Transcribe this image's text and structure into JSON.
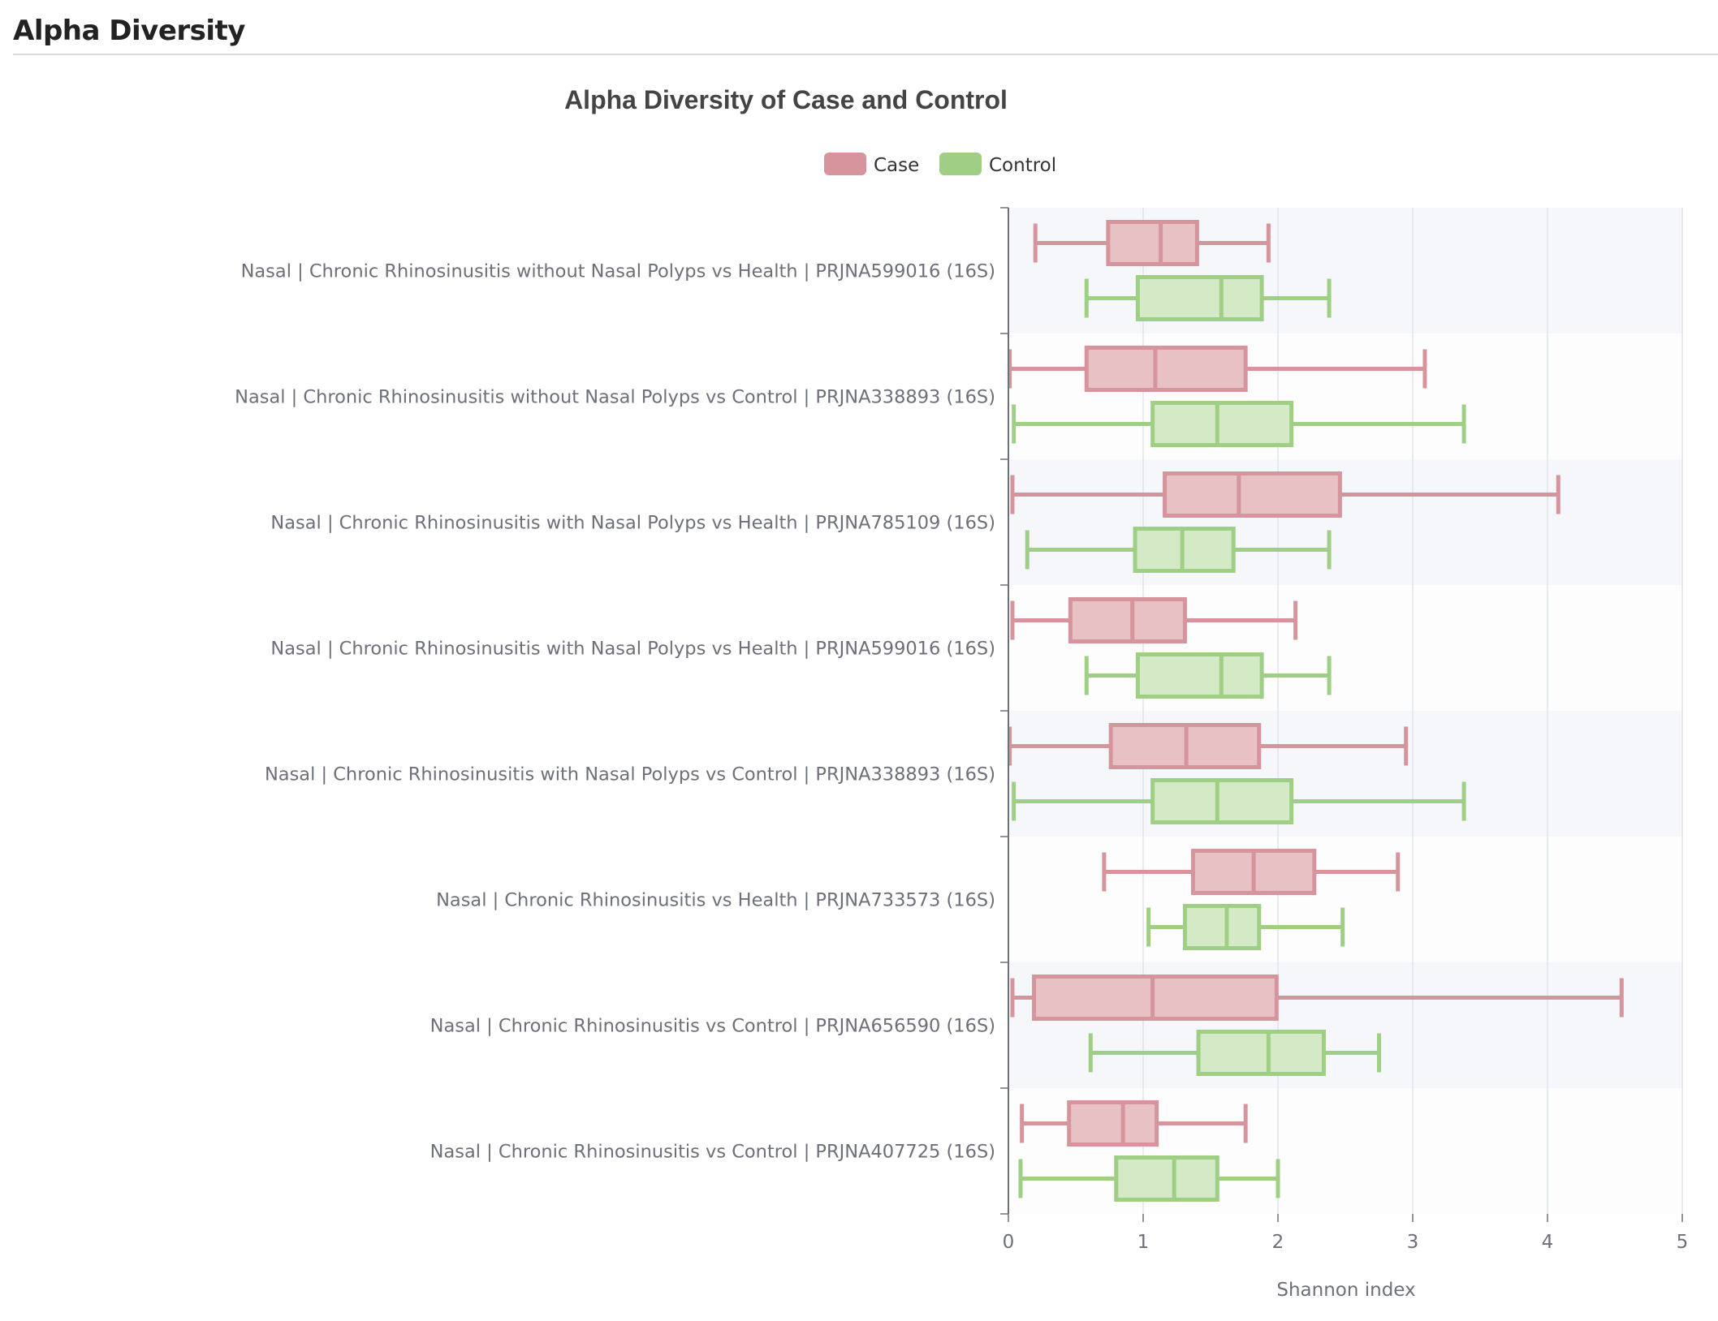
{
  "header": {
    "title": "Alpha Diversity"
  },
  "colors": {
    "case_stroke": "#d6959c",
    "case_fill": "#e8c1c5",
    "control_stroke": "#9fcf84",
    "control_fill": "#d4e9c5",
    "band": "#f6f7fb",
    "grid": "#e0e3ea",
    "axis": "#6e7079"
  },
  "chart_data": {
    "type": "boxplot",
    "title": "Alpha Diversity of Case and Control",
    "xlabel": "Shannon index",
    "ylabel": "",
    "xlim": [
      0,
      5
    ],
    "xticks": [
      "0",
      "1",
      "2",
      "3",
      "4",
      "5"
    ],
    "grid": true,
    "legend_position": "top-center",
    "categories": [
      "Nasal | Chronic Rhinosinusitis without Nasal Polyps vs Health | PRJNA599016 (16S)",
      "Nasal | Chronic Rhinosinusitis without Nasal Polyps vs Control | PRJNA338893 (16S)",
      "Nasal | Chronic Rhinosinusitis with Nasal Polyps vs Health | PRJNA785109 (16S)",
      "Nasal | Chronic Rhinosinusitis with Nasal Polyps vs Health | PRJNA599016 (16S)",
      "Nasal | Chronic Rhinosinusitis with Nasal Polyps vs Control | PRJNA338893 (16S)",
      "Nasal | Chronic Rhinosinusitis vs Health | PRJNA733573 (16S)",
      "Nasal | Chronic Rhinosinusitis vs Control | PRJNA656590 (16S)",
      "Nasal | Chronic Rhinosinusitis vs Control | PRJNA407725 (16S)"
    ],
    "series": [
      {
        "name": "Case",
        "boxes": [
          [
            0.2,
            0.74,
            1.13,
            1.4,
            1.93
          ],
          [
            0.01,
            0.58,
            1.09,
            1.76,
            3.09
          ],
          [
            0.03,
            1.16,
            1.71,
            2.46,
            4.08
          ],
          [
            0.03,
            0.46,
            0.92,
            1.31,
            2.13
          ],
          [
            0.01,
            0.76,
            1.32,
            1.86,
            2.95
          ],
          [
            0.71,
            1.37,
            1.82,
            2.27,
            2.89
          ],
          [
            0.03,
            0.19,
            1.07,
            1.99,
            4.55
          ],
          [
            0.1,
            0.45,
            0.85,
            1.1,
            1.76
          ]
        ]
      },
      {
        "name": "Control",
        "boxes": [
          [
            0.58,
            0.96,
            1.58,
            1.88,
            2.38
          ],
          [
            0.04,
            1.07,
            1.55,
            2.1,
            3.38
          ],
          [
            0.14,
            0.94,
            1.29,
            1.67,
            2.38
          ],
          [
            0.58,
            0.96,
            1.58,
            1.88,
            2.38
          ],
          [
            0.04,
            1.07,
            1.55,
            2.1,
            3.38
          ],
          [
            1.04,
            1.31,
            1.62,
            1.86,
            2.48
          ],
          [
            0.61,
            1.41,
            1.93,
            2.34,
            2.75
          ],
          [
            0.09,
            0.8,
            1.23,
            1.55,
            2.0
          ]
        ]
      }
    ]
  }
}
